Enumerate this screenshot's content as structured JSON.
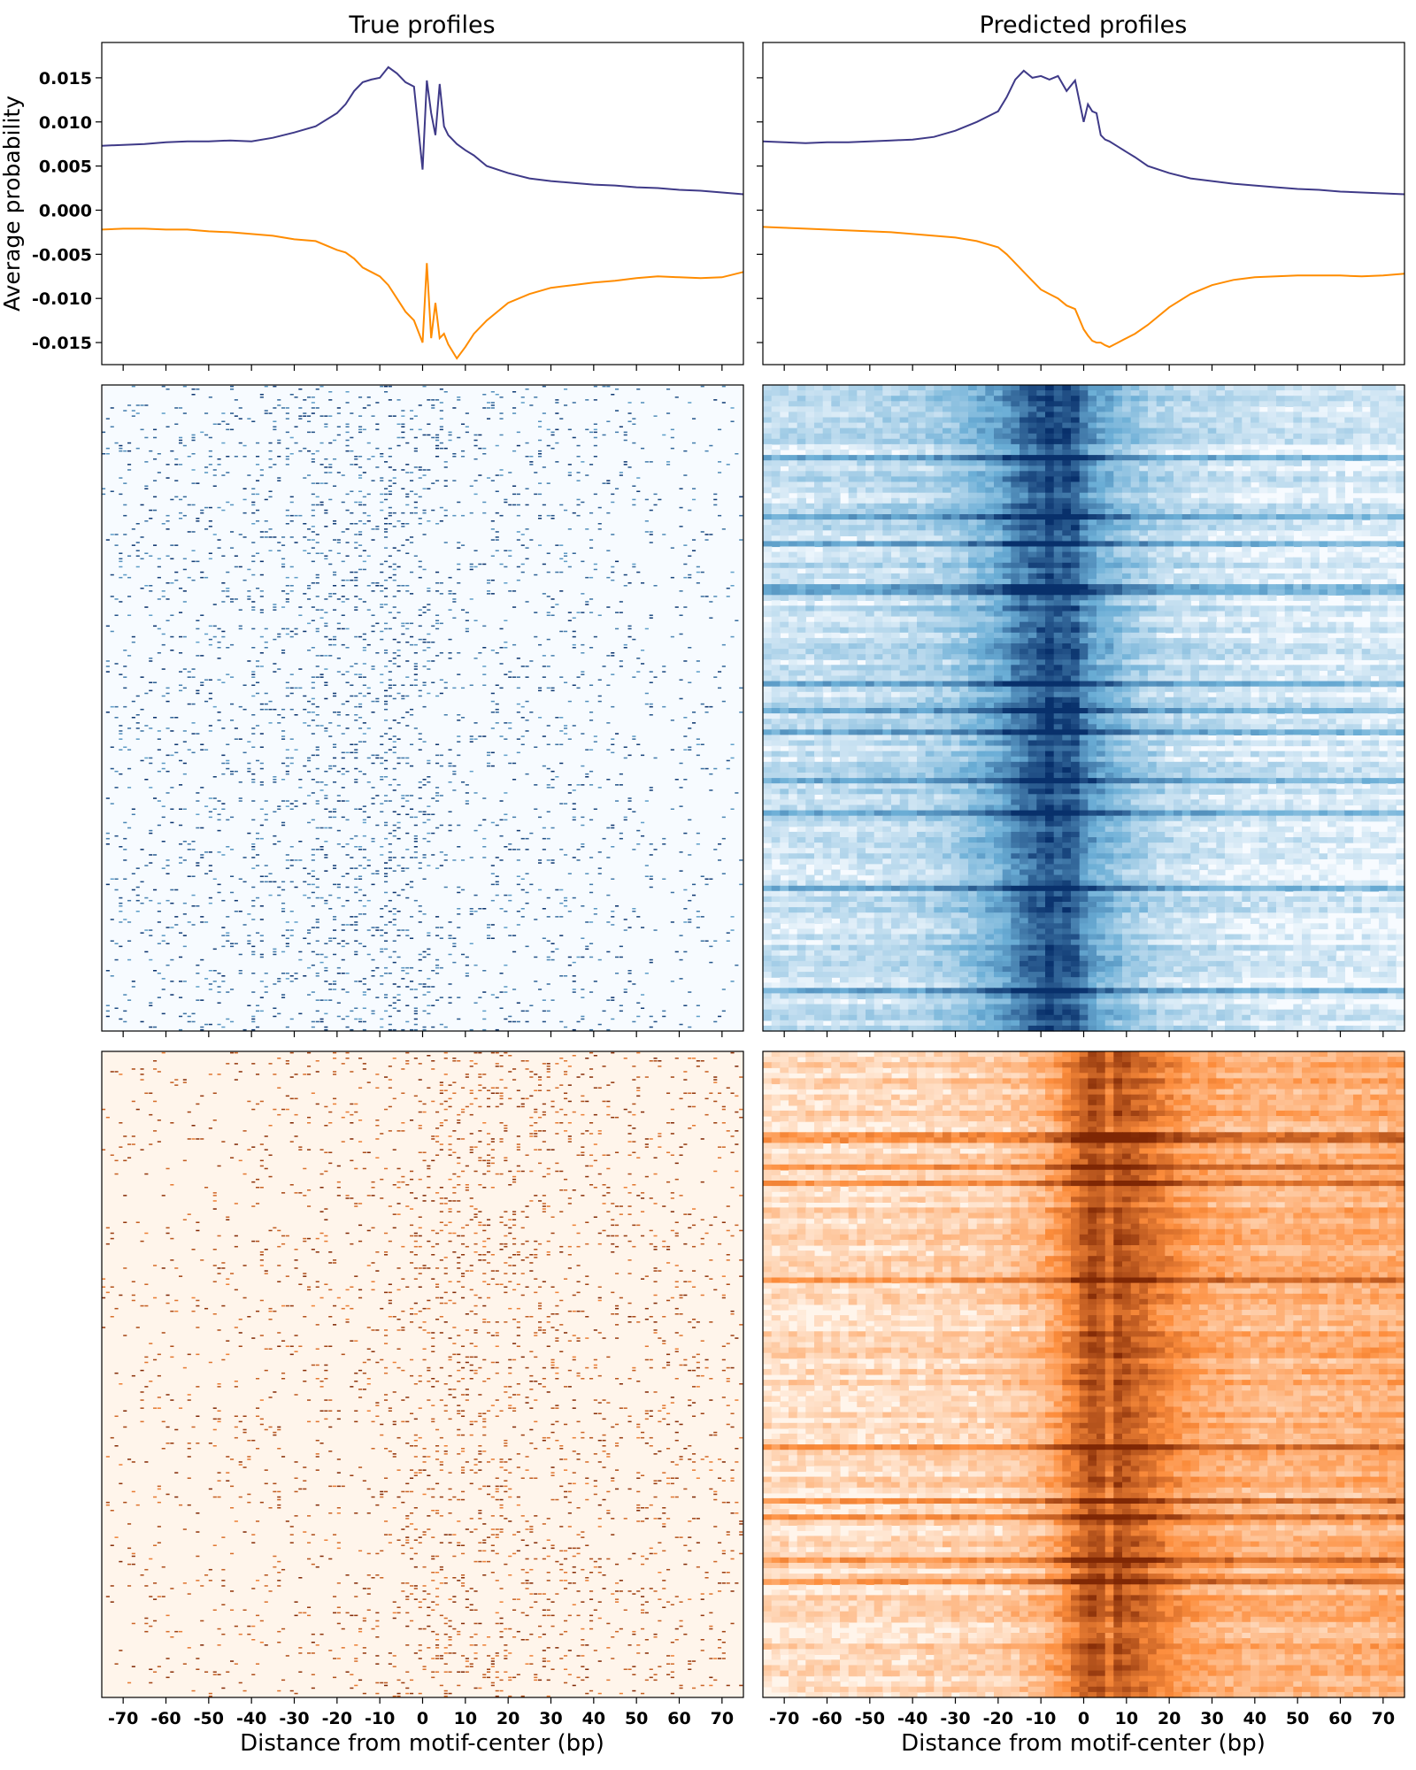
{
  "figure": {
    "col_titles": [
      "True profiles",
      "Predicted profiles"
    ],
    "ylabel": "Average probability",
    "xlabel": "Distance from motif-center (bp)"
  },
  "chart_data": [
    {
      "type": "line",
      "panel": "True profiles",
      "title": "True profiles",
      "xlabel": "",
      "ylabel": "Average probability",
      "xlim": [
        -75,
        75
      ],
      "ylim": [
        -0.0175,
        0.019
      ],
      "yticks": [
        0.015,
        0.01,
        0.005,
        0.0,
        -0.005,
        -0.01,
        -0.015
      ],
      "ytick_labels": [
        "0.015",
        "0.010",
        "0.005",
        "0.000",
        "-0.005",
        "-0.010",
        "-0.015"
      ],
      "x": [
        -75,
        -70,
        -65,
        -60,
        -55,
        -50,
        -45,
        -40,
        -35,
        -30,
        -25,
        -20,
        -18,
        -16,
        -14,
        -12,
        -10,
        -8,
        -6,
        -4,
        -2,
        0,
        1,
        2,
        3,
        4,
        5,
        6,
        8,
        10,
        12,
        15,
        20,
        25,
        30,
        35,
        40,
        45,
        50,
        55,
        60,
        65,
        70,
        75
      ],
      "series": [
        {
          "color": "#3f3a88",
          "values": [
            0.0073,
            0.0074,
            0.0075,
            0.0077,
            0.0078,
            0.0078,
            0.0079,
            0.0078,
            0.0082,
            0.0088,
            0.0095,
            0.011,
            0.012,
            0.0135,
            0.0145,
            0.0148,
            0.015,
            0.0162,
            0.0155,
            0.0145,
            0.014,
            0.0046,
            0.0147,
            0.011,
            0.0085,
            0.0143,
            0.0095,
            0.0085,
            0.0075,
            0.0068,
            0.0062,
            0.005,
            0.0042,
            0.0036,
            0.0033,
            0.0031,
            0.0029,
            0.0028,
            0.0026,
            0.0025,
            0.0023,
            0.0022,
            0.002,
            0.0018
          ]
        },
        {
          "color": "#ff8c00",
          "values": [
            -0.0022,
            -0.0021,
            -0.0021,
            -0.0022,
            -0.0022,
            -0.0024,
            -0.0025,
            -0.0027,
            -0.0029,
            -0.0033,
            -0.0035,
            -0.0045,
            -0.0048,
            -0.0055,
            -0.0065,
            -0.007,
            -0.0075,
            -0.0085,
            -0.01,
            -0.0115,
            -0.0125,
            -0.015,
            -0.006,
            -0.0145,
            -0.0105,
            -0.0145,
            -0.014,
            -0.0152,
            -0.0168,
            -0.0155,
            -0.014,
            -0.0125,
            -0.0105,
            -0.0095,
            -0.0088,
            -0.0085,
            -0.0082,
            -0.008,
            -0.0077,
            -0.0075,
            -0.0076,
            -0.0077,
            -0.0076,
            -0.007
          ]
        }
      ]
    },
    {
      "type": "line",
      "panel": "Predicted profiles",
      "title": "Predicted profiles",
      "xlabel": "",
      "ylabel": "",
      "xlim": [
        -75,
        75
      ],
      "ylim": [
        -0.0175,
        0.019
      ],
      "x": [
        -75,
        -70,
        -65,
        -60,
        -55,
        -50,
        -45,
        -40,
        -35,
        -30,
        -25,
        -20,
        -18,
        -16,
        -14,
        -12,
        -10,
        -8,
        -6,
        -4,
        -2,
        0,
        1,
        2,
        3,
        4,
        5,
        6,
        8,
        10,
        12,
        15,
        20,
        25,
        30,
        35,
        40,
        45,
        50,
        55,
        60,
        65,
        70,
        75
      ],
      "series": [
        {
          "color": "#3f3a88",
          "values": [
            0.0078,
            0.0077,
            0.0076,
            0.0077,
            0.0077,
            0.0078,
            0.0079,
            0.008,
            0.0083,
            0.009,
            0.01,
            0.0112,
            0.0128,
            0.0148,
            0.0158,
            0.015,
            0.0152,
            0.0148,
            0.0152,
            0.0135,
            0.0147,
            0.01,
            0.012,
            0.0112,
            0.011,
            0.0085,
            0.008,
            0.0078,
            0.0072,
            0.0066,
            0.006,
            0.005,
            0.0042,
            0.0036,
            0.0033,
            0.003,
            0.0028,
            0.0026,
            0.0024,
            0.0023,
            0.0021,
            0.002,
            0.0019,
            0.0018
          ]
        },
        {
          "color": "#ff8c00",
          "values": [
            -0.0019,
            -0.002,
            -0.0021,
            -0.0022,
            -0.0023,
            -0.0024,
            -0.0025,
            -0.0027,
            -0.0029,
            -0.0031,
            -0.0035,
            -0.0042,
            -0.005,
            -0.006,
            -0.007,
            -0.008,
            -0.009,
            -0.0095,
            -0.01,
            -0.0108,
            -0.0112,
            -0.0135,
            -0.0142,
            -0.0148,
            -0.015,
            -0.015,
            -0.0153,
            -0.0155,
            -0.015,
            -0.0145,
            -0.014,
            -0.013,
            -0.011,
            -0.0095,
            -0.0085,
            -0.0079,
            -0.0076,
            -0.0075,
            -0.0074,
            -0.0074,
            -0.0074,
            -0.0075,
            -0.0074,
            -0.0072
          ]
        }
      ]
    },
    {
      "type": "heatmap",
      "panel": "True profiles, positive strand",
      "colormap": "Blues",
      "xlim": [
        -75,
        75
      ],
      "pattern": "sparse",
      "column_density": [
        [
          -75,
          0.13
        ],
        [
          -60,
          0.15
        ],
        [
          -40,
          0.18
        ],
        [
          -25,
          0.22
        ],
        [
          -10,
          0.25
        ],
        [
          0,
          0.22
        ],
        [
          15,
          0.16
        ],
        [
          30,
          0.12
        ],
        [
          50,
          0.09
        ],
        [
          75,
          0.07
        ]
      ]
    },
    {
      "type": "heatmap",
      "panel": "Predicted profiles, positive strand",
      "colormap": "Blues",
      "xlim": [
        -75,
        75
      ],
      "pattern": "dense",
      "column_intensity": [
        [
          -75,
          0.15
        ],
        [
          -60,
          0.17
        ],
        [
          -40,
          0.22
        ],
        [
          -30,
          0.3
        ],
        [
          -20,
          0.5
        ],
        [
          -15,
          0.7
        ],
        [
          -10,
          0.82
        ],
        [
          -8,
          0.9
        ],
        [
          -5,
          0.78
        ],
        [
          -3,
          0.9
        ],
        [
          0,
          0.65
        ],
        [
          3,
          0.5
        ],
        [
          8,
          0.4
        ],
        [
          12,
          0.3
        ],
        [
          20,
          0.2
        ],
        [
          40,
          0.12
        ],
        [
          75,
          0.08
        ]
      ]
    },
    {
      "type": "heatmap",
      "panel": "True profiles, negative strand",
      "colormap": "Oranges",
      "xlim": [
        -75,
        75
      ],
      "xticks": [
        -70,
        -60,
        -50,
        -40,
        -30,
        -20,
        -10,
        0,
        10,
        20,
        30,
        40,
        50,
        60,
        70
      ],
      "xtick_labels": [
        "-70",
        "-60",
        "-50",
        "-40",
        "-30",
        "-20",
        "-10",
        "0",
        "10",
        "20",
        "30",
        "40",
        "50",
        "60",
        "70"
      ],
      "xlabel": "Distance from motif-center (bp)",
      "pattern": "sparse",
      "column_density": [
        [
          -75,
          0.06
        ],
        [
          -50,
          0.08
        ],
        [
          -25,
          0.1
        ],
        [
          -5,
          0.14
        ],
        [
          0,
          0.22
        ],
        [
          10,
          0.27
        ],
        [
          25,
          0.2
        ],
        [
          45,
          0.14
        ],
        [
          75,
          0.11
        ]
      ]
    },
    {
      "type": "heatmap",
      "panel": "Predicted profiles, negative strand",
      "colormap": "Oranges",
      "xlim": [
        -75,
        75
      ],
      "xticks": [
        -70,
        -60,
        -50,
        -40,
        -30,
        -20,
        -10,
        0,
        10,
        20,
        30,
        40,
        50,
        60,
        70
      ],
      "xtick_labels": [
        "-70",
        "-60",
        "-50",
        "-40",
        "-30",
        "-20",
        "-10",
        "0",
        "10",
        "20",
        "30",
        "40",
        "50",
        "60",
        "70"
      ],
      "xlabel": "Distance from motif-center (bp)",
      "pattern": "dense",
      "column_intensity": [
        [
          -75,
          0.1
        ],
        [
          -50,
          0.12
        ],
        [
          -20,
          0.18
        ],
        [
          -10,
          0.3
        ],
        [
          -5,
          0.45
        ],
        [
          0,
          0.7
        ],
        [
          3,
          0.85
        ],
        [
          6,
          0.6
        ],
        [
          8,
          0.8
        ],
        [
          12,
          0.7
        ],
        [
          18,
          0.55
        ],
        [
          25,
          0.4
        ],
        [
          40,
          0.3
        ],
        [
          60,
          0.32
        ],
        [
          75,
          0.35
        ]
      ]
    }
  ]
}
